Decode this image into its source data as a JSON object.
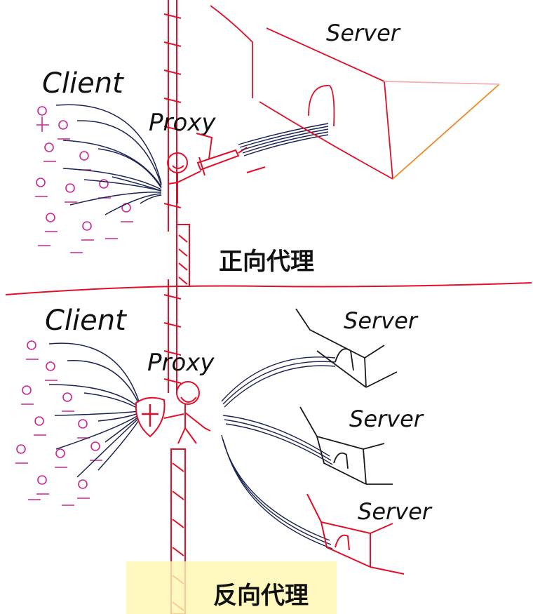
{
  "forward": {
    "client_label": "Client",
    "proxy_label": "Proxy",
    "server_label": "Server",
    "caption": "正向代理"
  },
  "reverse": {
    "client_label": "Client",
    "proxy_label": "Proxy",
    "server_labels": [
      "Server",
      "Server",
      "Server"
    ],
    "caption": "反向代理"
  },
  "colors": {
    "ink": "#111111",
    "red": "#e0102a",
    "magenta": "#d0258c",
    "navy": "#1c2452",
    "highlight": "#fff7b0"
  },
  "icons": {
    "proxy_forward_weapon": "sword-icon",
    "proxy_reverse_weapon": "shield-icon"
  }
}
